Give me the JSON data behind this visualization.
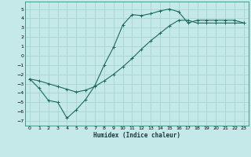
{
  "xlabel": "Humidex (Indice chaleur)",
  "bg_color": "#c5e8e8",
  "grid_color": "#a8d4d4",
  "line_color": "#1a6b5a",
  "xlim": [
    -0.5,
    23.5
  ],
  "ylim": [
    -7.5,
    5.8
  ],
  "xticks": [
    0,
    1,
    2,
    3,
    4,
    5,
    6,
    7,
    8,
    9,
    10,
    11,
    12,
    13,
    14,
    15,
    16,
    17,
    18,
    19,
    20,
    21,
    22,
    23
  ],
  "yticks": [
    -7,
    -6,
    -5,
    -4,
    -3,
    -2,
    -1,
    0,
    1,
    2,
    3,
    4,
    5
  ],
  "line1_x": [
    0,
    1,
    2,
    3,
    4,
    5,
    6,
    7,
    8,
    9,
    10,
    11,
    12,
    13,
    14,
    15,
    16,
    17,
    18,
    19,
    20,
    21,
    22,
    23
  ],
  "line1_y": [
    -2.5,
    -3.5,
    -4.8,
    -5.0,
    -6.7,
    -5.8,
    -4.7,
    -3.2,
    -1.0,
    0.9,
    3.3,
    4.4,
    4.3,
    4.5,
    4.8,
    5.0,
    4.7,
    3.5,
    3.8,
    3.8,
    3.8,
    3.8,
    3.8,
    3.5
  ],
  "line2_x": [
    0,
    1,
    2,
    3,
    4,
    5,
    6,
    7,
    8,
    9,
    10,
    11,
    12,
    13,
    14,
    15,
    16,
    17,
    18,
    19,
    20,
    21,
    22,
    23
  ],
  "line2_y": [
    -2.5,
    -2.7,
    -3.0,
    -3.3,
    -3.6,
    -3.9,
    -3.7,
    -3.3,
    -2.7,
    -2.0,
    -1.2,
    -0.3,
    0.7,
    1.6,
    2.4,
    3.2,
    3.8,
    3.8,
    3.5,
    3.5,
    3.5,
    3.5,
    3.5,
    3.5
  ]
}
